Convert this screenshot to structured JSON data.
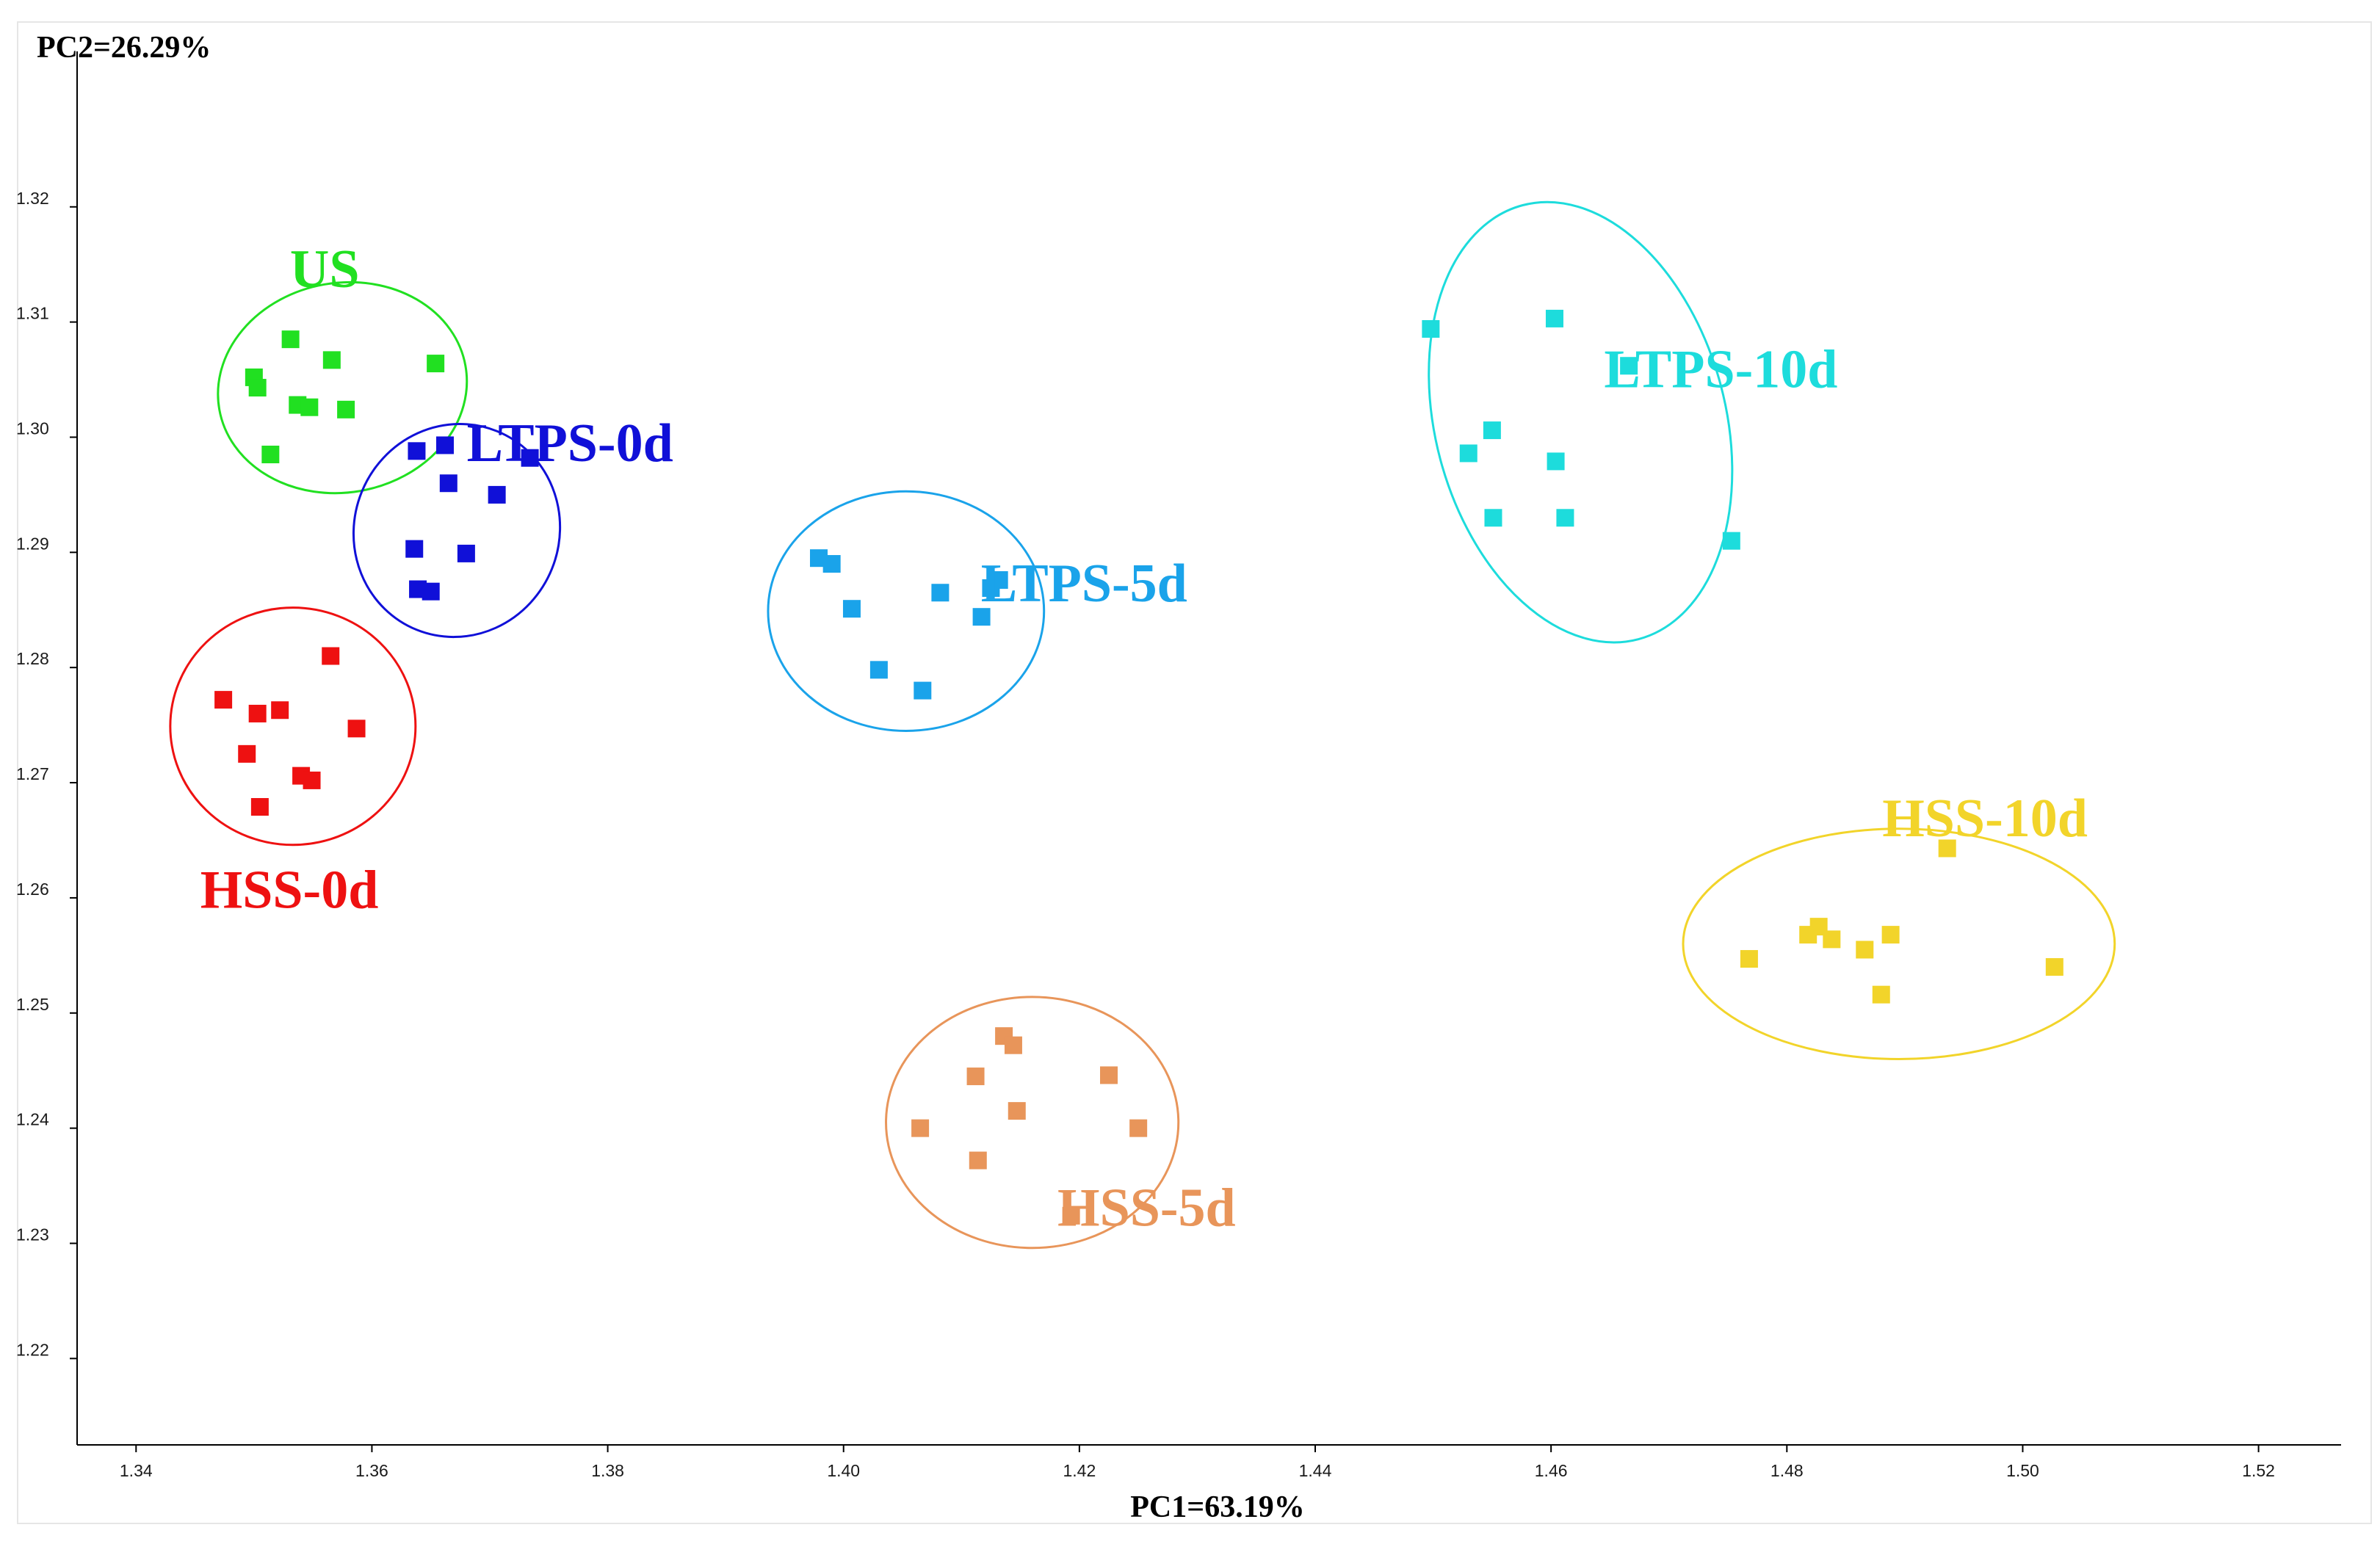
{
  "chart_data": {
    "type": "scatter",
    "title": "",
    "xlabel": "PC1=63.19%",
    "ylabel": "PC2=26.29%",
    "xlim": [
      1.335,
      1.527
    ],
    "ylim": [
      1.2125,
      1.3335
    ],
    "x_ticks": [
      1.34,
      1.36,
      1.38,
      1.4,
      1.42,
      1.44,
      1.46,
      1.48,
      1.5,
      1.52
    ],
    "y_ticks": [
      1.22,
      1.23,
      1.24,
      1.25,
      1.26,
      1.27,
      1.28,
      1.29,
      1.3,
      1.31,
      1.32
    ],
    "x_tick_labels": [
      "1.34",
      "1.36",
      "1.38",
      "1.40",
      "1.42",
      "1.44",
      "1.46",
      "1.48",
      "1.50",
      "1.52"
    ],
    "y_tick_labels": [
      "1.22",
      "1.23",
      "1.24",
      "1.25",
      "1.26",
      "1.27",
      "1.28",
      "1.29",
      "1.30",
      "1.31",
      "1.32"
    ],
    "grid": false,
    "series": [
      {
        "name": "US",
        "color": "#21e021",
        "ellipse": {
          "cx": 1.3575,
          "cy": 1.3043,
          "rx": 0.0106,
          "ry": 0.0091,
          "angle": -10
        },
        "points": [
          [
            1.35,
            1.3052
          ],
          [
            1.3503,
            1.3043
          ],
          [
            1.3514,
            1.2985
          ],
          [
            1.3531,
            1.3085
          ],
          [
            1.3537,
            1.3028
          ],
          [
            1.3547,
            1.3026
          ],
          [
            1.3566,
            1.3067
          ],
          [
            1.3578,
            1.3024
          ],
          [
            1.3654,
            1.3064
          ]
        ]
      },
      {
        "name": "LTPS-0d",
        "color": "#1010d8",
        "ellipse": {
          "cx": 1.3672,
          "cy": 1.2919,
          "rx": 0.0087,
          "ry": 0.0093,
          "angle": 22
        },
        "points": [
          [
            1.3636,
            1.2903
          ],
          [
            1.3638,
            1.2988
          ],
          [
            1.3639,
            1.2868
          ],
          [
            1.365,
            1.2866
          ],
          [
            1.3662,
            1.2993
          ],
          [
            1.3665,
            1.296
          ],
          [
            1.368,
            1.2899
          ],
          [
            1.3706,
            1.295
          ],
          [
            1.3734,
            1.2982
          ]
        ]
      },
      {
        "name": "LTPS-5d",
        "color": "#1aa3ea",
        "ellipse": {
          "cx": 1.4053,
          "cy": 1.2849,
          "rx": 0.0117,
          "ry": 0.0104,
          "angle": 0
        },
        "points": [
          [
            1.3979,
            1.2895
          ],
          [
            1.399,
            1.289
          ],
          [
            1.4007,
            1.2851
          ],
          [
            1.403,
            1.2798
          ],
          [
            1.4067,
            1.278
          ],
          [
            1.4082,
            1.2865
          ],
          [
            1.4117,
            1.2844
          ],
          [
            1.4125,
            1.2869
          ],
          [
            1.4132,
            1.2876
          ]
        ]
      },
      {
        "name": "LTPS-10d",
        "color": "#1ddcdc",
        "ellipse": {
          "cx": 1.4625,
          "cy": 1.3013,
          "rx": 0.0123,
          "ry": 0.0195,
          "angle": -15
        },
        "points": [
          [
            1.4498,
            1.3094
          ],
          [
            1.453,
            1.2986
          ],
          [
            1.455,
            1.3006
          ],
          [
            1.4551,
            1.293
          ],
          [
            1.4603,
            1.3103
          ],
          [
            1.4604,
            1.2979
          ],
          [
            1.4612,
            1.293
          ],
          [
            1.4666,
            1.3062
          ],
          [
            1.4753,
            1.291
          ]
        ]
      },
      {
        "name": "HSS-0d",
        "color": "#ee1111",
        "ellipse": {
          "cx": 1.3533,
          "cy": 1.2749,
          "rx": 0.0104,
          "ry": 0.0103,
          "angle": 0
        },
        "points": [
          [
            1.3474,
            1.2772
          ],
          [
            1.3494,
            1.2725
          ],
          [
            1.3503,
            1.276
          ],
          [
            1.3505,
            1.2679
          ],
          [
            1.3522,
            1.2763
          ],
          [
            1.354,
            1.2706
          ],
          [
            1.3549,
            1.2702
          ],
          [
            1.3565,
            1.281
          ],
          [
            1.3587,
            1.2747
          ]
        ]
      },
      {
        "name": "HSS-5d",
        "color": "#e8955a",
        "ellipse": {
          "cx": 1.416,
          "cy": 1.2405,
          "rx": 0.0124,
          "ry": 0.0109,
          "angle": 0
        },
        "points": [
          [
            1.4065,
            1.24
          ],
          [
            1.4112,
            1.2445
          ],
          [
            1.4114,
            1.2372
          ],
          [
            1.4136,
            1.248
          ],
          [
            1.4144,
            1.2472
          ],
          [
            1.4147,
            1.2415
          ],
          [
            1.4193,
            1.2324
          ],
          [
            1.4225,
            1.2446
          ],
          [
            1.425,
            1.24
          ]
        ]
      },
      {
        "name": "HSS-10d",
        "color": "#f2d42a",
        "ellipse": {
          "cx": 1.4895,
          "cy": 1.256,
          "rx": 0.0183,
          "ry": 0.01,
          "angle": 0
        },
        "points": [
          [
            1.4768,
            1.2547
          ],
          [
            1.4818,
            1.2568
          ],
          [
            1.4827,
            1.2575
          ],
          [
            1.4838,
            1.2564
          ],
          [
            1.4866,
            1.2555
          ],
          [
            1.488,
            1.2516
          ],
          [
            1.4888,
            1.2568
          ],
          [
            1.4936,
            1.2643
          ],
          [
            1.5027,
            1.254
          ]
        ]
      }
    ],
    "labels": [
      {
        "text": "US",
        "series": "US",
        "x": 1.356,
        "y": 1.3147
      },
      {
        "text": "LTPS-0d",
        "series": "LTPS-0d",
        "x": 1.3768,
        "y": 1.2996
      },
      {
        "text": "LTPS-5d",
        "series": "LTPS-5d",
        "x": 1.4204,
        "y": 1.2874
      },
      {
        "text": "LTPS-10d",
        "series": "LTPS-10d",
        "x": 1.4744,
        "y": 1.306
      },
      {
        "text": "HSS-0d",
        "series": "HSS-0d",
        "x": 1.353,
        "y": 1.2608
      },
      {
        "text": "HSS-5d",
        "series": "HSS-5d",
        "x": 1.4257,
        "y": 1.2332
      },
      {
        "text": "HSS-10d",
        "series": "HSS-10d",
        "x": 1.4968,
        "y": 1.267
      }
    ]
  }
}
